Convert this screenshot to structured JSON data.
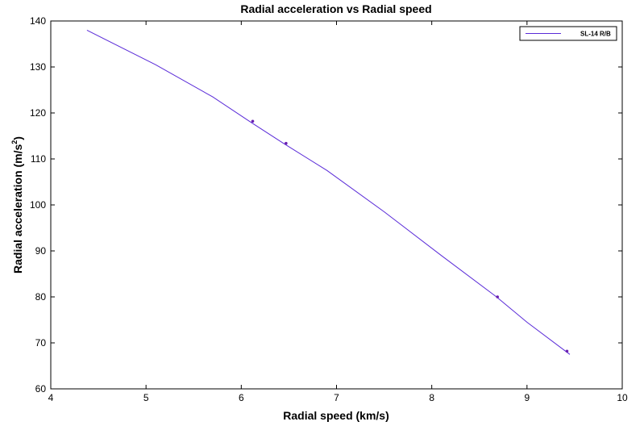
{
  "chart_data": {
    "type": "line",
    "title": "Radial acceleration vs Radial speed",
    "xlabel": "Radial speed (km/s)",
    "ylabel_main": "Radial acceleration (m/s",
    "ylabel_sup": "2",
    "ylabel_close": ")",
    "xlim": [
      4,
      10
    ],
    "ylim": [
      60,
      140
    ],
    "xticks": [
      "4",
      "5",
      "6",
      "7",
      "8",
      "9",
      "10"
    ],
    "yticks": [
      "60",
      "70",
      "80",
      "90",
      "100",
      "110",
      "120",
      "130",
      "140"
    ],
    "grid": false,
    "legend_position": "top-right",
    "colors": {
      "line": "#5a2bd8",
      "marker": "#6a1fb0",
      "axes": "#000000"
    },
    "series": [
      {
        "name": "SL-14 R/B",
        "x": [
          4.38,
          5.1,
          5.7,
          6.1,
          6.45,
          6.9,
          7.5,
          8.1,
          8.68,
          9.0,
          9.45
        ],
        "y": [
          138,
          130.5,
          123.5,
          118,
          113.3,
          107.5,
          98.5,
          89,
          80,
          74.5,
          67.5
        ]
      }
    ],
    "markers": {
      "x": [
        6.12,
        6.47,
        8.69,
        9.42
      ],
      "y": [
        118.2,
        113.4,
        80.0,
        68.2
      ]
    }
  }
}
